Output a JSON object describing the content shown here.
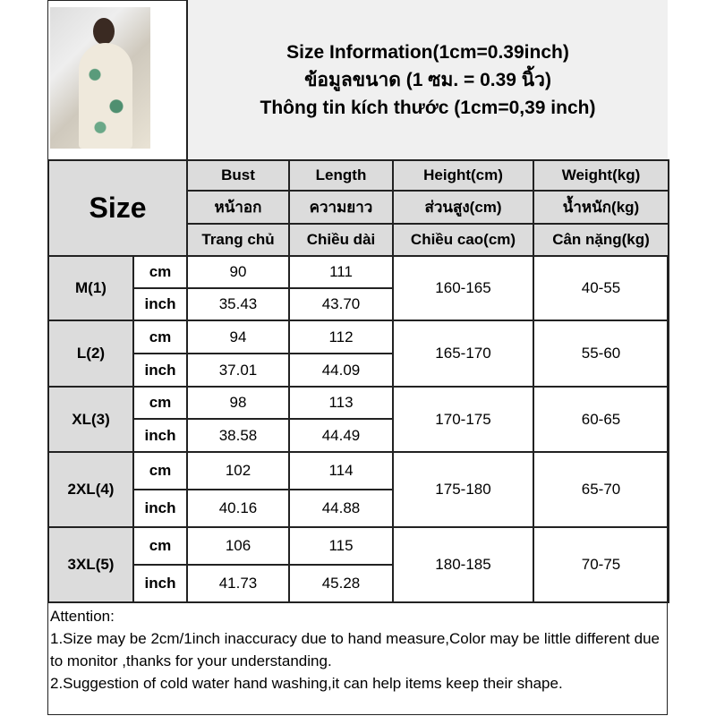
{
  "title_lines": [
    "Size Information(1cm=0.39inch)",
    "ข้อมูลขนาด (1 ซม. = 0.39 นิ้ว)",
    "Thông tin kích thước (1cm=0,39 inch)"
  ],
  "size_label": "Size",
  "columns": [
    {
      "en": "Bust",
      "th": "หน้าอก",
      "vi": "Trang chủ"
    },
    {
      "en": "Length",
      "th": "ความยาว",
      "vi": "Chiều dài"
    },
    {
      "en": "Height(cm)",
      "th": "ส่วนสูง(cm)",
      "vi": "Chiều cao(cm)"
    },
    {
      "en": "Weight(kg)",
      "th": "น้ำหนัก(kg)",
      "vi": "Cân nặng(kg)"
    }
  ],
  "units": {
    "cm": "cm",
    "inch": "inch"
  },
  "rows": [
    {
      "size": "M(1)",
      "bust_cm": "90",
      "length_cm": "111",
      "bust_in": "35.43",
      "length_in": "43.70",
      "height": "160-165",
      "weight": "40-55"
    },
    {
      "size": "L(2)",
      "bust_cm": "94",
      "length_cm": "112",
      "bust_in": "37.01",
      "length_in": "44.09",
      "height": "165-170",
      "weight": "55-60"
    },
    {
      "size": "XL(3)",
      "bust_cm": "98",
      "length_cm": "113",
      "bust_in": "38.58",
      "length_in": "44.49",
      "height": "170-175",
      "weight": "60-65"
    },
    {
      "size": "2XL(4)",
      "bust_cm": "102",
      "length_cm": "114",
      "bust_in": "40.16",
      "length_in": "44.88",
      "height": "175-180",
      "weight": "65-70"
    },
    {
      "size": "3XL(5)",
      "bust_cm": "106",
      "length_cm": "115",
      "bust_in": "41.73",
      "length_in": "45.28",
      "height": "180-185",
      "weight": "70-75"
    }
  ],
  "attention": {
    "heading": "Attention:",
    "line1": "1.Size may be 2cm/1inch inaccuracy due to hand measure,Color may be little different due to monitor ,thanks for your understanding.",
    "line2": "2.Suggestion of cold water hand washing,it can help items keep their shape."
  }
}
